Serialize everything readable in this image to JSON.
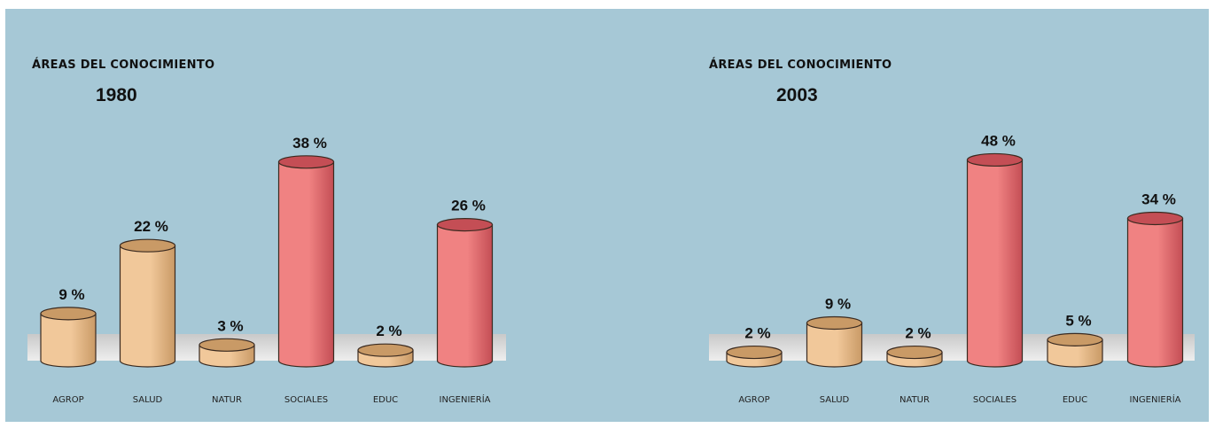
{
  "colors": {
    "background": "#a6c8d6",
    "bar_tan": "#f1c89a",
    "bar_tan_dark": "#c99a66",
    "bar_red": "#f08282",
    "bar_red_dark": "#c44e55",
    "floor": "#d8d8d8"
  },
  "chart_data": [
    {
      "type": "bar",
      "title": "ÁREAS DEL CONOCIMIENTO",
      "subtitle": "1980",
      "categories": [
        "AGROP",
        "SALUD",
        "NATUR",
        "SOCIALES",
        "EDUC",
        "INGENIERÍA"
      ],
      "values": [
        9,
        22,
        3,
        38,
        2,
        26
      ],
      "data_labels": [
        "9 %",
        "22 %",
        "3 %",
        "38 %",
        "2 %",
        "26 %"
      ],
      "bar_colors": [
        "tan",
        "tan",
        "tan",
        "red",
        "tan",
        "red"
      ],
      "ylim": [
        0,
        40
      ],
      "grid": false,
      "legend": "none"
    },
    {
      "type": "bar",
      "title": "ÁREAS DEL CONOCIMIENTO",
      "subtitle": "2003",
      "categories": [
        "AGROP",
        "SALUD",
        "NATUR",
        "SOCIALES",
        "EDUC",
        "INGENIERÍA"
      ],
      "values": [
        2,
        9,
        2,
        48,
        5,
        34
      ],
      "data_labels": [
        "2 %",
        "9 %",
        "2 %",
        "48 %",
        "5 %",
        "34 %"
      ],
      "bar_colors": [
        "tan",
        "tan",
        "tan",
        "red",
        "tan",
        "red"
      ],
      "ylim": [
        0,
        50
      ],
      "grid": false,
      "legend": "none"
    }
  ]
}
